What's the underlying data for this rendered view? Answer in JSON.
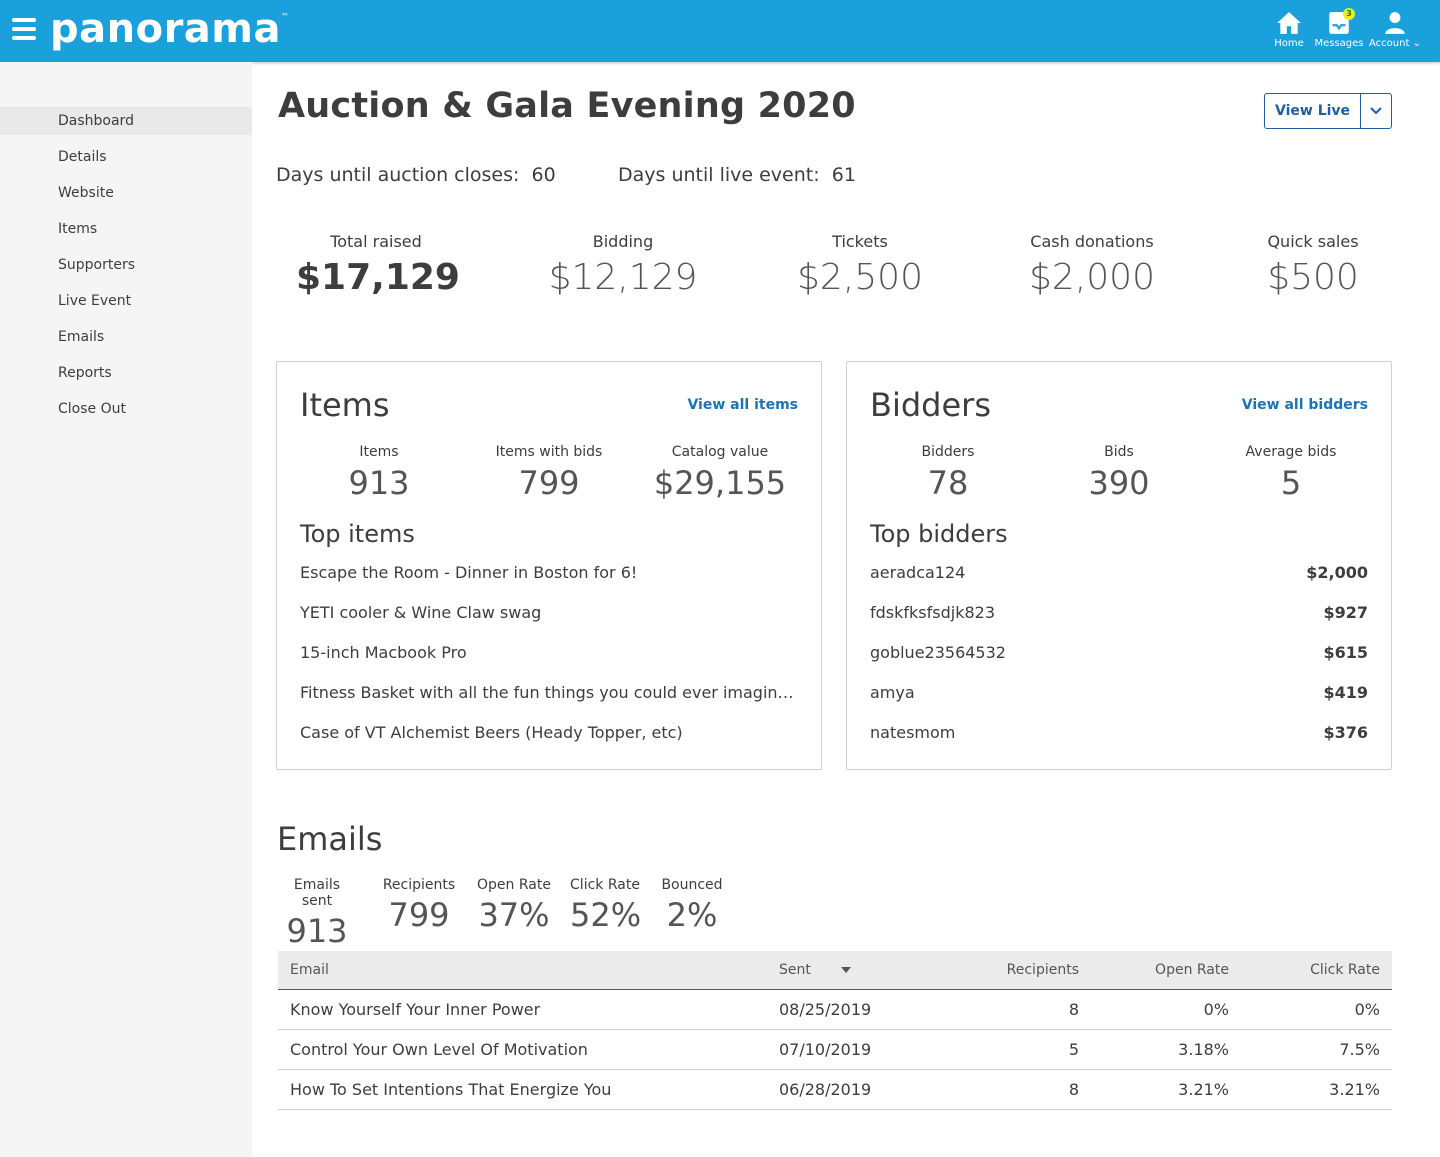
{
  "app": {
    "logo_text": "panorama",
    "logo_tm": "™",
    "nav": [
      {
        "label": "Home",
        "icon": "home-icon"
      },
      {
        "label": "Messages",
        "icon": "messages-icon",
        "badge": "3"
      },
      {
        "label": "Account",
        "icon": "account-icon"
      }
    ]
  },
  "sidebar": {
    "items": [
      {
        "label": "Dashboard",
        "active": true
      },
      {
        "label": "Details"
      },
      {
        "label": "Website"
      },
      {
        "label": "Items"
      },
      {
        "label": "Supporters"
      },
      {
        "label": "Live Event"
      },
      {
        "label": "Emails"
      },
      {
        "label": "Reports"
      },
      {
        "label": "Close Out"
      }
    ]
  },
  "header": {
    "title": "Auction & Gala Evening 2020",
    "view_live_label": "View Live"
  },
  "countdown": {
    "auction_label": "Days until auction closes:",
    "auction_value": "60",
    "live_label": "Days until live event:",
    "live_value": "61"
  },
  "totals": [
    {
      "label": "Total raised",
      "value": "$17,129"
    },
    {
      "label": "Bidding",
      "value": "$12,129"
    },
    {
      "label": "Tickets",
      "value": "$2,500"
    },
    {
      "label": "Cash donations",
      "value": "$2,000"
    },
    {
      "label": "Quick sales",
      "value": "$500"
    }
  ],
  "items_card": {
    "title": "Items",
    "link": "View all items",
    "stats": [
      {
        "label": "Items",
        "value": "913"
      },
      {
        "label": "Items with bids",
        "value": "799"
      },
      {
        "label": "Catalog value",
        "value": "$29,155"
      }
    ],
    "top_title": "Top items",
    "top": [
      "Escape the Room - Dinner in Boston for 6!",
      "YETI cooler & Wine Claw swag",
      "15-inch Macbook Pro",
      "Fitness Basket with all the fun things you could ever imagine incl...",
      "Case of VT Alchemist Beers (Heady Topper, etc)"
    ]
  },
  "bidders_card": {
    "title": "Bidders",
    "link": "View all bidders",
    "stats": [
      {
        "label": "Bidders",
        "value": "78"
      },
      {
        "label": "Bids",
        "value": "390"
      },
      {
        "label": "Average bids",
        "value": "5"
      }
    ],
    "top_title": "Top bidders",
    "top": [
      {
        "name": "aeradca124",
        "amount": "$2,000"
      },
      {
        "name": "fdskfksfsdjk823",
        "amount": "$927"
      },
      {
        "name": "goblue23564532",
        "amount": "$615"
      },
      {
        "name": "amya",
        "amount": "$419"
      },
      {
        "name": "natesmom",
        "amount": "$376"
      }
    ]
  },
  "emails": {
    "title": "Emails",
    "stats": [
      {
        "label": "Emails sent",
        "value": "913"
      },
      {
        "label": "Recipients",
        "value": "799"
      },
      {
        "label": "Open Rate",
        "value": "37%"
      },
      {
        "label": "Click Rate",
        "value": "52%"
      },
      {
        "label": "Bounced",
        "value": "2%"
      }
    ],
    "columns": [
      "Email",
      "Sent",
      "Recipients",
      "Open Rate",
      "Click Rate"
    ],
    "rows": [
      {
        "email": "Know Yourself Your Inner Power",
        "sent": "08/25/2019",
        "recipients": "8",
        "open": "0%",
        "click": "0%"
      },
      {
        "email": "Control Your Own Level Of Motivation",
        "sent": "07/10/2019",
        "recipients": "5",
        "open": "3.18%",
        "click": "7.5%"
      },
      {
        "email": "How To Set Intentions That Energize You",
        "sent": "06/28/2019",
        "recipients": "8",
        "open": "3.21%",
        "click": "3.21%"
      }
    ]
  }
}
